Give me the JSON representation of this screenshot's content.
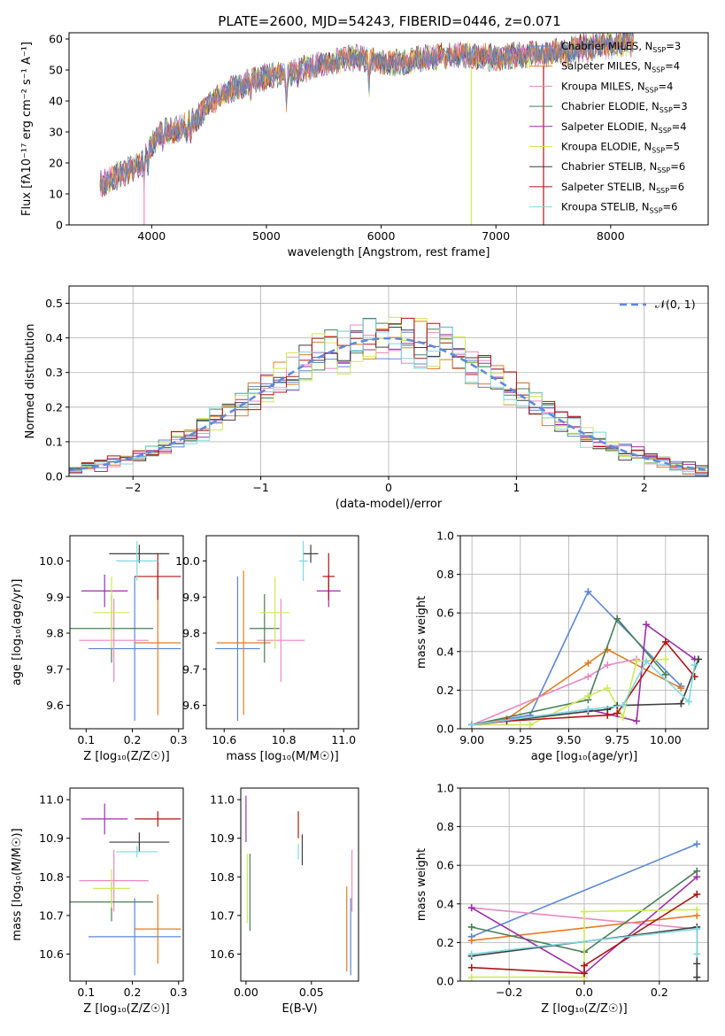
{
  "figure": {
    "title": "PLATE=2600, MJD=54243, FIBERID=0446, z=0.071"
  },
  "colors": {
    "series": [
      "#5b87d3",
      "#e47c22",
      "#e889c0",
      "#4a7f57",
      "#9b30a8",
      "#cdea5b",
      "#3e3e3e",
      "#b01515",
      "#7ed9e0"
    ]
  },
  "labels": {
    "series": [
      {
        "name": "Chabrier MILES",
        "n": "3"
      },
      {
        "name": "Salpeter MILES",
        "n": "4"
      },
      {
        "name": "Kroupa MILES",
        "n": "4"
      },
      {
        "name": "Chabrier ELODIE",
        "n": "3"
      },
      {
        "name": "Salpeter ELODIE",
        "n": "4"
      },
      {
        "name": "Kroupa ELODIE",
        "n": "5"
      },
      {
        "name": "Chabrier STELIB",
        "n": "6"
      },
      {
        "name": "Salpeter STELIB",
        "n": "6"
      },
      {
        "name": "Kroupa STELIB",
        "n": "6"
      }
    ],
    "nssp_prefix": "N",
    "nssp_sub": "SSP",
    "normal_legend": "𝒩(0, 1)"
  },
  "chart_data": [
    {
      "id": "spectrum",
      "type": "line",
      "xlabel": "wavelength [Angstrom, rest frame]",
      "ylabel": "Flux [fλ10⁻¹⁷ erg cm⁻² s⁻¹ A⁻¹]",
      "xlim": [
        3280,
        8850
      ],
      "ylim": [
        0,
        62
      ],
      "xticks": [
        4000,
        5000,
        6000,
        7000,
        8000
      ],
      "yticks": [
        0,
        10,
        20,
        30,
        40,
        50,
        60
      ],
      "grid": false,
      "legend": "right",
      "x_start": 3550,
      "x_end": 8200,
      "continuum": [
        [
          3550,
          13
        ],
        [
          3700,
          16
        ],
        [
          3900,
          19
        ],
        [
          4000,
          26
        ],
        [
          4100,
          30
        ],
        [
          4250,
          31
        ],
        [
          4400,
          35
        ],
        [
          4600,
          42
        ],
        [
          4900,
          47
        ],
        [
          5200,
          49
        ],
        [
          5500,
          52
        ],
        [
          5800,
          54
        ],
        [
          6100,
          52
        ],
        [
          6400,
          54
        ],
        [
          6700,
          55
        ],
        [
          7000,
          54
        ],
        [
          7300,
          55
        ],
        [
          7600,
          56
        ],
        [
          7900,
          58
        ],
        [
          8200,
          59
        ]
      ],
      "absorption_spikes": [
        {
          "x": 3934,
          "y": 0,
          "series": 2
        },
        {
          "x": 6785,
          "y": 0,
          "series": 5
        },
        {
          "x": 7415,
          "y": 0,
          "series": 7
        }
      ]
    },
    {
      "id": "residuals",
      "type": "histogram",
      "xlabel": "(data-model)/error",
      "ylabel": "Normed distribution",
      "xlim": [
        -2.5,
        2.5
      ],
      "ylim": [
        0,
        0.55
      ],
      "xticks": [
        -2,
        -1,
        0,
        1,
        2
      ],
      "yticks": [
        0.0,
        0.1,
        0.2,
        0.3,
        0.4,
        0.5
      ],
      "grid": true,
      "legend": "top-right",
      "bin_width": 0.1,
      "bin_start": -2.5,
      "normal_curve": {
        "mean": 0,
        "sigma": 1
      }
    },
    {
      "id": "age-vs-Z",
      "type": "errorbar",
      "xlabel": "Z [log₁₀(Z/Z☉)]",
      "ylabel": "age  [log₁₀(age/yr)]",
      "xlim": [
        0.065,
        0.31
      ],
      "ylim": [
        9.535,
        10.07
      ],
      "xticks": [
        0.1,
        0.2,
        0.3
      ],
      "yticks": [
        9.6,
        9.7,
        9.8,
        9.9,
        10.0
      ],
      "grid": false,
      "points": [
        {
          "series": 0,
          "x": 0.205,
          "y": 9.757,
          "xerr": 0.1,
          "yerr": 0.2
        },
        {
          "series": 1,
          "x": 0.255,
          "y": 9.773,
          "xerr": 0.05,
          "yerr": 0.2
        },
        {
          "series": 2,
          "x": 0.16,
          "y": 9.78,
          "xerr": 0.075,
          "yerr": 0.115
        },
        {
          "series": 3,
          "x": 0.155,
          "y": 9.813,
          "xerr": 0.09,
          "yerr": 0.095
        },
        {
          "series": 4,
          "x": 0.14,
          "y": 9.917,
          "xerr": 0.05,
          "yerr": 0.045
        },
        {
          "series": 5,
          "x": 0.155,
          "y": 9.857,
          "xerr": 0.04,
          "yerr": 0.1
        },
        {
          "series": 6,
          "x": 0.215,
          "y": 10.02,
          "xerr": 0.065,
          "yerr": 0.025
        },
        {
          "series": 7,
          "x": 0.255,
          "y": 9.957,
          "xerr": 0.05,
          "yerr": 0.065
        },
        {
          "series": 8,
          "x": 0.21,
          "y": 10.0,
          "xerr": 0.045,
          "yerr": 0.055
        }
      ]
    },
    {
      "id": "age-vs-mass",
      "type": "errorbar",
      "xlabel": "mass [log₁₀(M/M☉)]",
      "ylabel": "",
      "xlim": [
        10.54,
        11.05
      ],
      "ylim": [
        9.535,
        10.07
      ],
      "xticks": [
        10.6,
        10.8,
        11.0
      ],
      "yticks": [
        9.6,
        9.7,
        9.8,
        9.9,
        10.0
      ],
      "grid": false,
      "points": [
        {
          "series": 0,
          "x": 10.645,
          "y": 9.757,
          "xerr": 0.075,
          "yerr": 0.2
        },
        {
          "series": 1,
          "x": 10.665,
          "y": 9.773,
          "xerr": 0.09,
          "yerr": 0.2
        },
        {
          "series": 2,
          "x": 10.79,
          "y": 9.78,
          "xerr": 0.08,
          "yerr": 0.115
        },
        {
          "series": 3,
          "x": 10.735,
          "y": 9.813,
          "xerr": 0.05,
          "yerr": 0.095
        },
        {
          "series": 4,
          "x": 10.95,
          "y": 9.917,
          "xerr": 0.04,
          "yerr": 0.045
        },
        {
          "series": 5,
          "x": 10.77,
          "y": 9.857,
          "xerr": 0.05,
          "yerr": 0.1
        },
        {
          "series": 6,
          "x": 10.89,
          "y": 10.02,
          "xerr": 0.025,
          "yerr": 0.025
        },
        {
          "series": 7,
          "x": 10.95,
          "y": 9.957,
          "xerr": 0.02,
          "yerr": 0.065
        },
        {
          "series": 8,
          "x": 10.865,
          "y": 10.0,
          "xerr": 0.015,
          "yerr": 0.055
        }
      ]
    },
    {
      "id": "weight-vs-age",
      "type": "line",
      "xlabel": "age  [log₁₀(age/yr)]",
      "ylabel": "mass weight",
      "xlim": [
        8.94,
        10.22
      ],
      "ylim": [
        0.0,
        1.0
      ],
      "xticks": [
        9.0,
        9.25,
        9.5,
        9.75,
        10.0
      ],
      "yticks": [
        0.0,
        0.2,
        0.4,
        0.6,
        0.8,
        1.0
      ],
      "grid": true,
      "series": [
        {
          "color_index": 0,
          "points": [
            [
              9.0,
              0.02
            ],
            [
              9.3,
              0.07
            ],
            [
              9.6,
              0.71
            ],
            [
              10.08,
              0.22
            ]
          ]
        },
        {
          "color_index": 1,
          "points": [
            [
              9.0,
              0.02
            ],
            [
              9.18,
              0.05
            ],
            [
              9.6,
              0.34
            ],
            [
              9.7,
              0.41
            ],
            [
              10.08,
              0.21
            ]
          ]
        },
        {
          "color_index": 2,
          "points": [
            [
              9.0,
              0.02
            ],
            [
              9.6,
              0.27
            ],
            [
              9.7,
              0.33
            ],
            [
              9.85,
              0.36
            ]
          ]
        },
        {
          "color_index": 3,
          "points": [
            [
              9.0,
              0.02
            ],
            [
              9.6,
              0.15
            ],
            [
              9.75,
              0.57
            ],
            [
              10.0,
              0.28
            ]
          ]
        },
        {
          "color_index": 4,
          "points": [
            [
              9.0,
              0.02
            ],
            [
              9.6,
              0.1
            ],
            [
              9.85,
              0.04
            ],
            [
              9.9,
              0.54
            ],
            [
              10.15,
              0.36
            ]
          ]
        },
        {
          "color_index": 5,
          "points": [
            [
              9.0,
              0.02
            ],
            [
              9.3,
              0.02
            ],
            [
              9.6,
              0.17
            ],
            [
              9.7,
              0.21
            ],
            [
              9.78,
              0.06
            ],
            [
              9.85,
              0.35
            ],
            [
              10.0,
              0.36
            ]
          ]
        },
        {
          "color_index": 6,
          "points": [
            [
              9.0,
              0.02
            ],
            [
              9.6,
              0.09
            ],
            [
              9.7,
              0.1
            ],
            [
              9.75,
              0.12
            ],
            [
              10.08,
              0.13
            ],
            [
              10.17,
              0.36
            ]
          ]
        },
        {
          "color_index": 7,
          "points": [
            [
              9.0,
              0.02
            ],
            [
              9.18,
              0.04
            ],
            [
              9.7,
              0.07
            ],
            [
              9.75,
              0.08
            ],
            [
              10.0,
              0.45
            ],
            [
              10.15,
              0.27
            ]
          ]
        },
        {
          "color_index": 8,
          "points": [
            [
              9.0,
              0.02
            ],
            [
              9.6,
              0.1
            ],
            [
              9.78,
              0.12
            ],
            [
              9.9,
              0.35
            ],
            [
              10.12,
              0.14
            ],
            [
              10.15,
              0.33
            ]
          ]
        }
      ]
    },
    {
      "id": "mass-vs-Z",
      "type": "errorbar",
      "xlabel": "Z [log₁₀(Z/Z☉)]",
      "ylabel": "mass [log₁₀(M/M☉)]",
      "xlim": [
        0.065,
        0.31
      ],
      "ylim": [
        10.53,
        11.03
      ],
      "xticks": [
        0.1,
        0.2,
        0.3
      ],
      "yticks": [
        10.6,
        10.7,
        10.8,
        10.9,
        11.0
      ],
      "grid": false,
      "points": [
        {
          "series": 0,
          "x": 0.205,
          "y": 10.645,
          "xerr": 0.1,
          "yerr": 0.1
        },
        {
          "series": 1,
          "x": 0.255,
          "y": 10.665,
          "xerr": 0.05,
          "yerr": 0.09
        },
        {
          "series": 2,
          "x": 0.16,
          "y": 10.79,
          "xerr": 0.075,
          "yerr": 0.08
        },
        {
          "series": 3,
          "x": 0.155,
          "y": 10.735,
          "xerr": 0.09,
          "yerr": 0.05
        },
        {
          "series": 4,
          "x": 0.14,
          "y": 10.95,
          "xerr": 0.05,
          "yerr": 0.04
        },
        {
          "series": 5,
          "x": 0.155,
          "y": 10.77,
          "xerr": 0.04,
          "yerr": 0.05
        },
        {
          "series": 6,
          "x": 0.215,
          "y": 10.89,
          "xerr": 0.065,
          "yerr": 0.025
        },
        {
          "series": 7,
          "x": 0.255,
          "y": 10.95,
          "xerr": 0.05,
          "yerr": 0.02
        },
        {
          "series": 8,
          "x": 0.21,
          "y": 10.865,
          "xerr": 0.045,
          "yerr": 0.015
        }
      ]
    },
    {
      "id": "mass-vs-EBV",
      "type": "errorbar",
      "xlabel": "E(B-V)",
      "ylabel": "",
      "xlim": [
        -0.004,
        0.086
      ],
      "ylim": [
        10.53,
        11.03
      ],
      "xticks": [
        0.0,
        0.05
      ],
      "yticks": [
        10.6,
        10.7,
        10.8,
        10.9,
        11.0
      ],
      "grid": false,
      "points": [
        {
          "series": 0,
          "x": 0.08,
          "y": 10.645,
          "xerr": 0,
          "yerr": 0.1
        },
        {
          "series": 1,
          "x": 0.077,
          "y": 10.665,
          "xerr": 0,
          "yerr": 0.11
        },
        {
          "series": 2,
          "x": 0.081,
          "y": 10.79,
          "xerr": 0,
          "yerr": 0.08
        },
        {
          "series": 3,
          "x": 0.003,
          "y": 10.76,
          "xerr": 0,
          "yerr": 0.1
        },
        {
          "series": 4,
          "x": 0.0,
          "y": 10.95,
          "xerr": 0,
          "yerr": 0.06
        },
        {
          "series": 5,
          "x": 0.001,
          "y": 10.77,
          "xerr": 0,
          "yerr": 0.09
        },
        {
          "series": 6,
          "x": 0.043,
          "y": 10.87,
          "xerr": 0,
          "yerr": 0.04
        },
        {
          "series": 7,
          "x": 0.04,
          "y": 10.935,
          "xerr": 0,
          "yerr": 0.035
        },
        {
          "series": 8,
          "x": 0.04,
          "y": 10.865,
          "xerr": 0,
          "yerr": 0.02
        }
      ]
    },
    {
      "id": "weight-vs-Z",
      "type": "line",
      "xlabel": "Z [log₁₀(Z/Z☉)]",
      "ylabel": "mass weight",
      "xlim": [
        -0.33,
        0.33
      ],
      "ylim": [
        0.0,
        1.0
      ],
      "xticks": [
        -0.2,
        0.0,
        0.2
      ],
      "yticks": [
        0.0,
        0.2,
        0.4,
        0.6,
        0.8,
        1.0
      ],
      "grid": true,
      "series": [
        {
          "color_index": 0,
          "points": [
            [
              -0.3,
              0.23
            ],
            [
              0.3,
              0.71
            ]
          ]
        },
        {
          "color_index": 1,
          "points": [
            [
              -0.3,
              0.21
            ],
            [
              0.3,
              0.34
            ]
          ]
        },
        {
          "color_index": 2,
          "points": [
            [
              -0.3,
              0.38
            ],
            [
              0.3,
              0.27
            ],
            [
              0.3,
              0.02
            ]
          ]
        },
        {
          "color_index": 3,
          "points": [
            [
              -0.3,
              0.28
            ],
            [
              0.0,
              0.15
            ],
            [
              0.3,
              0.57
            ]
          ]
        },
        {
          "color_index": 4,
          "points": [
            [
              -0.3,
              0.38
            ],
            [
              0.0,
              0.04
            ],
            [
              0.3,
              0.54
            ]
          ]
        },
        {
          "color_index": 5,
          "points": [
            [
              -0.3,
              0.02
            ],
            [
              0.0,
              0.02
            ],
            [
              0.0,
              0.36
            ],
            [
              0.3,
              0.37
            ]
          ]
        },
        {
          "color_index": 6,
          "points": [
            [
              -0.3,
              0.13
            ],
            [
              0.3,
              0.28
            ],
            [
              0.3,
              0.09
            ],
            [
              0.3,
              0.02
            ]
          ]
        },
        {
          "color_index": 7,
          "points": [
            [
              -0.3,
              0.07
            ],
            [
              0.0,
              0.04
            ],
            [
              0.0,
              0.08
            ],
            [
              0.3,
              0.45
            ]
          ]
        },
        {
          "color_index": 8,
          "points": [
            [
              -0.3,
              0.14
            ],
            [
              0.3,
              0.27
            ],
            [
              0.3,
              0.14
            ]
          ]
        }
      ]
    }
  ]
}
